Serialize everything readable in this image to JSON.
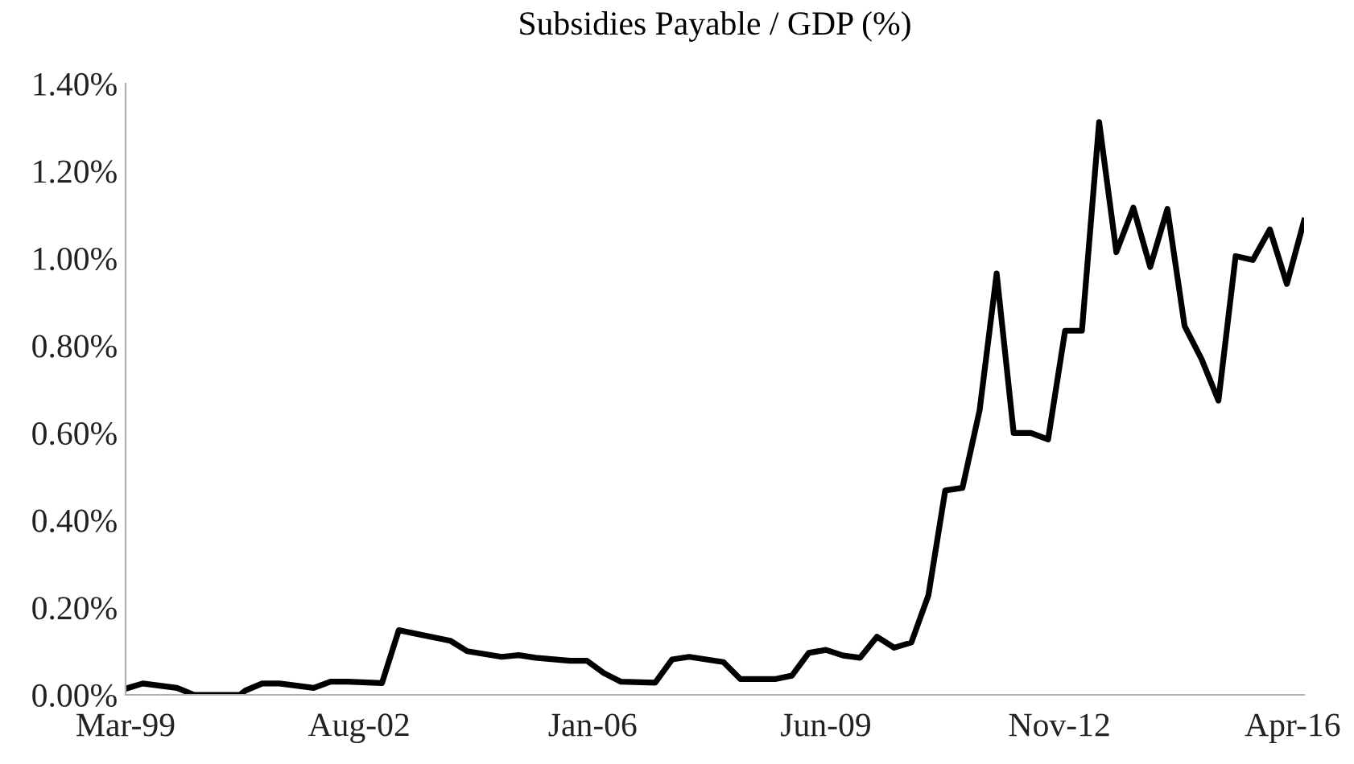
{
  "chart_data": {
    "type": "line",
    "title": "Subsidies Payable / GDP (%)",
    "x": [
      "1999-03",
      "1999-06",
      "1999-12",
      "2000-03",
      "2000-11",
      "2000-12",
      "2001-03",
      "2001-06",
      "2001-12",
      "2002-03",
      "2002-06",
      "2002-12",
      "2003-03",
      "2003-12",
      "2004-03",
      "2004-09",
      "2004-12",
      "2005-03",
      "2005-09",
      "2005-12",
      "2006-03",
      "2006-06",
      "2006-12",
      "2007-03",
      "2007-06",
      "2007-12",
      "2008-03",
      "2008-09",
      "2008-12",
      "2009-03",
      "2009-06",
      "2009-09",
      "2009-12",
      "2010-03",
      "2010-06",
      "2010-09",
      "2010-12",
      "2011-03",
      "2011-06",
      "2011-09",
      "2011-12",
      "2012-03",
      "2012-06",
      "2012-09",
      "2012-12",
      "2013-03",
      "2013-06",
      "2013-09",
      "2013-12",
      "2014-03",
      "2014-06",
      "2014-09",
      "2014-12",
      "2015-03",
      "2015-06",
      "2015-09",
      "2015-12",
      "2016-03",
      "2016-06"
    ],
    "series": [
      {
        "color": "#000000",
        "values": [
          0.014,
          0.026,
          0.016,
          0.0,
          0.0,
          0.01,
          0.026,
          0.026,
          0.016,
          0.03,
          0.03,
          0.027,
          0.148,
          0.124,
          0.1,
          0.087,
          0.091,
          0.085,
          0.078,
          0.078,
          0.05,
          0.03,
          0.028,
          0.081,
          0.087,
          0.075,
          0.036,
          0.036,
          0.044,
          0.096,
          0.103,
          0.09,
          0.085,
          0.133,
          0.108,
          0.12,
          0.228,
          0.468,
          0.474,
          0.652,
          0.965,
          0.6,
          0.6,
          0.585,
          0.834,
          0.834,
          1.312,
          1.014,
          1.116,
          0.98,
          1.113,
          0.845,
          0.769,
          0.674,
          1.005,
          0.996,
          1.066,
          0.941,
          1.086
        ]
      }
    ],
    "xlim": [
      "1999-03",
      "2016-06"
    ],
    "xticks": [
      {
        "value": "1999-03",
        "label": "Mar-99"
      },
      {
        "value": "2002-08",
        "label": "Aug-02"
      },
      {
        "value": "2006-01",
        "label": "Jan-06"
      },
      {
        "value": "2009-06",
        "label": "Jun-09"
      },
      {
        "value": "2012-11",
        "label": "Nov-12"
      },
      {
        "value": "2016-04",
        "label": "Apr-16"
      }
    ],
    "ylim": [
      0,
      1.4
    ],
    "yticks": [
      {
        "value": 0,
        "label": "0.00%"
      },
      {
        "value": 0.2,
        "label": "0.20%"
      },
      {
        "value": 0.4,
        "label": "0.40%"
      },
      {
        "value": 0.6,
        "label": "0.60%"
      },
      {
        "value": 0.8,
        "label": "0.80%"
      },
      {
        "value": 1.0,
        "label": "1.00%"
      },
      {
        "value": 1.2,
        "label": "1.20%"
      },
      {
        "value": 1.4,
        "label": "1.40%"
      }
    ],
    "grid": false,
    "marker": "none",
    "line_style": "solid"
  }
}
